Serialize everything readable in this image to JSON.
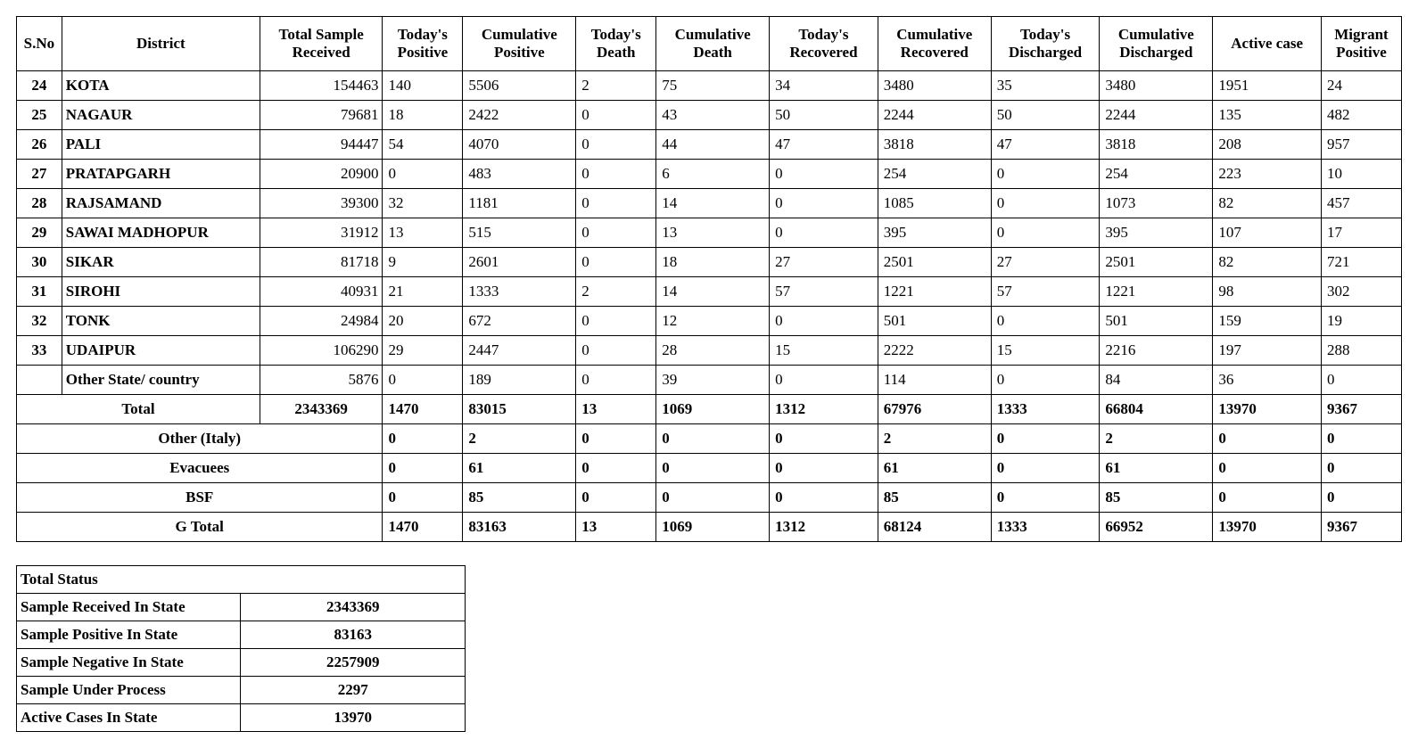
{
  "headers": {
    "sno": "S.No",
    "district": "District",
    "total_sample": "Total Sample Received",
    "todays_positive": "Today's Positive",
    "cum_positive": "Cumulative Positive",
    "todays_death": "Today's Death",
    "cum_death": "Cumulative Death",
    "todays_recovered": "Today's Recovered",
    "cum_recovered": "Cumulative Recovered",
    "todays_discharged": "Today's Discharged",
    "cum_discharged": "Cumulative Discharged",
    "active_case": "Active  case",
    "migrant_positive": "Migrant Positive"
  },
  "rows": [
    {
      "sno": "24",
      "district": "KOTA",
      "tsr": "154463",
      "tp": "140",
      "cp": "5506",
      "td": "2",
      "cd": "75",
      "tr": "34",
      "cr": "3480",
      "tdis": "35",
      "cdis": "3480",
      "active": "1951",
      "mig": "24"
    },
    {
      "sno": "25",
      "district": "NAGAUR",
      "tsr": "79681",
      "tp": "18",
      "cp": "2422",
      "td": "0",
      "cd": "43",
      "tr": "50",
      "cr": "2244",
      "tdis": "50",
      "cdis": "2244",
      "active": "135",
      "mig": "482"
    },
    {
      "sno": "26",
      "district": "PALI",
      "tsr": "94447",
      "tp": "54",
      "cp": "4070",
      "td": "0",
      "cd": "44",
      "tr": "47",
      "cr": "3818",
      "tdis": "47",
      "cdis": "3818",
      "active": "208",
      "mig": "957"
    },
    {
      "sno": "27",
      "district": "PRATAPGARH",
      "tsr": "20900",
      "tp": "0",
      "cp": "483",
      "td": "0",
      "cd": "6",
      "tr": "0",
      "cr": "254",
      "tdis": "0",
      "cdis": "254",
      "active": "223",
      "mig": "10"
    },
    {
      "sno": "28",
      "district": "RAJSAMAND",
      "tsr": "39300",
      "tp": "32",
      "cp": "1181",
      "td": "0",
      "cd": "14",
      "tr": "0",
      "cr": "1085",
      "tdis": "0",
      "cdis": "1073",
      "active": "82",
      "mig": "457"
    },
    {
      "sno": "29",
      "district": "SAWAI MADHOPUR",
      "tsr": "31912",
      "tp": "13",
      "cp": "515",
      "td": "0",
      "cd": "13",
      "tr": "0",
      "cr": "395",
      "tdis": "0",
      "cdis": "395",
      "active": "107",
      "mig": "17"
    },
    {
      "sno": "30",
      "district": "SIKAR",
      "tsr": "81718",
      "tp": "9",
      "cp": "2601",
      "td": "0",
      "cd": "18",
      "tr": "27",
      "cr": "2501",
      "tdis": "27",
      "cdis": "2501",
      "active": "82",
      "mig": "721"
    },
    {
      "sno": "31",
      "district": "SIROHI",
      "tsr": "40931",
      "tp": "21",
      "cp": "1333",
      "td": "2",
      "cd": "14",
      "tr": "57",
      "cr": "1221",
      "tdis": "57",
      "cdis": "1221",
      "active": "98",
      "mig": "302"
    },
    {
      "sno": "32",
      "district": "TONK",
      "tsr": "24984",
      "tp": "20",
      "cp": "672",
      "td": "0",
      "cd": "12",
      "tr": "0",
      "cr": "501",
      "tdis": "0",
      "cdis": "501",
      "active": "159",
      "mig": "19"
    },
    {
      "sno": "33",
      "district": "UDAIPUR",
      "tsr": "106290",
      "tp": "29",
      "cp": "2447",
      "td": "0",
      "cd": "28",
      "tr": "15",
      "cr": "2222",
      "tdis": "15",
      "cdis": "2216",
      "active": "197",
      "mig": "288"
    }
  ],
  "other_state_row": {
    "district": "Other State/ country",
    "tsr": "5876",
    "tp": "0",
    "cp": "189",
    "td": "0",
    "cd": "39",
    "tr": "0",
    "cr": "114",
    "tdis": "0",
    "cdis": "84",
    "active": "36",
    "mig": "0"
  },
  "total_row": {
    "label": "Total",
    "tsr": "2343369",
    "tp": "1470",
    "cp": "83015",
    "td": "13",
    "cd": "1069",
    "tr": "1312",
    "cr": "67976",
    "tdis": "1333",
    "cdis": "66804",
    "active": "13970",
    "mig": "9367"
  },
  "summary_rows": [
    {
      "label": "Other (Italy)",
      "tp": "0",
      "cp": "2",
      "td": "0",
      "cd": "0",
      "tr": "0",
      "cr": "2",
      "tdis": "0",
      "cdis": "2",
      "active": "0",
      "mig": "0"
    },
    {
      "label": "Evacuees",
      "tp": "0",
      "cp": "61",
      "td": "0",
      "cd": "0",
      "tr": "0",
      "cr": "61",
      "tdis": "0",
      "cdis": "61",
      "active": "0",
      "mig": "0"
    },
    {
      "label": "BSF",
      "tp": "0",
      "cp": "85",
      "td": "0",
      "cd": "0",
      "tr": "0",
      "cr": "85",
      "tdis": "0",
      "cdis": "85",
      "active": "0",
      "mig": "0"
    },
    {
      "label": "G Total",
      "tp": "1470",
      "cp": "83163",
      "td": "13",
      "cd": "1069",
      "tr": "1312",
      "cr": "68124",
      "tdis": "1333",
      "cdis": "66952",
      "active": "13970",
      "mig": "9367"
    }
  ],
  "status": {
    "title": "Total Status",
    "rows": [
      {
        "label": "Sample Received In State",
        "value": "2343369"
      },
      {
        "label": "Sample Positive In State",
        "value": "83163"
      },
      {
        "label": "Sample Negative In State",
        "value": "2257909"
      },
      {
        "label": "Sample Under Process",
        "value": "2297"
      },
      {
        "label": "Active Cases In State",
        "value": "13970"
      }
    ]
  },
  "style": {
    "font_family": "Times New Roman",
    "background_color": "#ffffff",
    "border_color": "#000000",
    "text_color": "#000000",
    "header_fontsize_pt": 13,
    "body_fontsize_pt": 13
  }
}
